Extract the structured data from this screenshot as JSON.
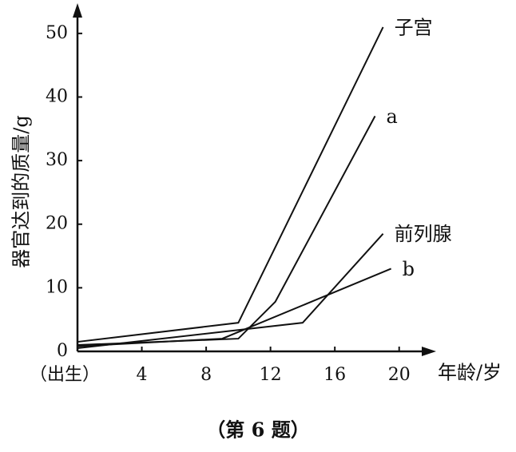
{
  "chart_data": {
    "type": "line",
    "y_label": "器官达到的质量/g",
    "x_label": "年龄/岁",
    "caption": "（第 6 题）",
    "xlim": [
      0,
      22
    ],
    "ylim": [
      0,
      54
    ],
    "xticks": [
      {
        "value": 0,
        "label": "（出生）"
      },
      4,
      8,
      12,
      16,
      20
    ],
    "yticks": [
      0,
      10,
      20,
      30,
      40,
      50
    ],
    "color": "#111111",
    "series": [
      {
        "name": "子宫",
        "x": [
          0,
          10,
          19
        ],
        "values": [
          1.5,
          4.5,
          51
        ]
      },
      {
        "name": "a",
        "x": [
          0,
          10,
          12.3,
          18.5
        ],
        "values": [
          1,
          2,
          7.8,
          37
        ]
      },
      {
        "name": "前列腺",
        "x": [
          0,
          14,
          19
        ],
        "values": [
          0.5,
          4.5,
          18.5
        ]
      },
      {
        "name": "b",
        "x": [
          0,
          9,
          19.5
        ],
        "values": [
          0.8,
          2,
          13
        ]
      }
    ]
  }
}
